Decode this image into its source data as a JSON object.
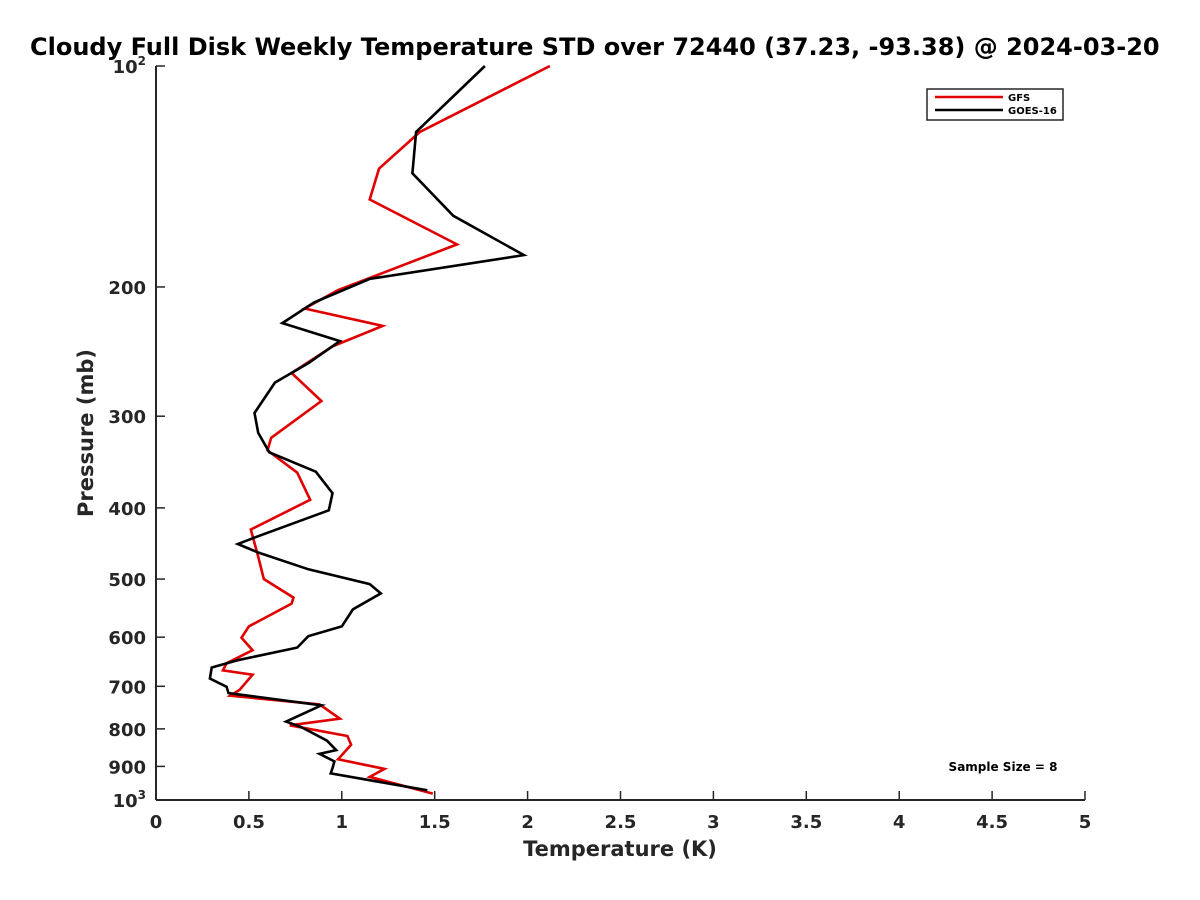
{
  "chart_data": {
    "type": "line",
    "title": "Cloudy Full Disk Weekly Temperature STD over 72440 (37.23, -93.38) @ 2024-03-20",
    "xlabel": "Temperature (K)",
    "ylabel": "Pressure (mb)",
    "xlim": [
      0,
      5
    ],
    "ylim": [
      1000,
      100
    ],
    "y_scale": "log",
    "y_reversed": true,
    "x_ticks": [
      "0",
      "0.5",
      "1",
      "1.5",
      "2",
      "2.5",
      "3",
      "3.5",
      "4",
      "4.5",
      "5"
    ],
    "y_ticks": [
      {
        "value": 100,
        "label": "10",
        "sup": "2"
      },
      {
        "value": 200,
        "label": "200",
        "sup": ""
      },
      {
        "value": 300,
        "label": "300",
        "sup": ""
      },
      {
        "value": 400,
        "label": "400",
        "sup": ""
      },
      {
        "value": 500,
        "label": "500",
        "sup": ""
      },
      {
        "value": 600,
        "label": "600",
        "sup": ""
      },
      {
        "value": 700,
        "label": "700",
        "sup": ""
      },
      {
        "value": 800,
        "label": "800",
        "sup": ""
      },
      {
        "value": 900,
        "label": "900",
        "sup": ""
      },
      {
        "value": 1000,
        "label": "10",
        "sup": "3"
      }
    ],
    "grid": false,
    "legend_position": "top-right",
    "annotation": "Sample Size = 8",
    "series": [
      {
        "name": "GFS",
        "color": "#e00000",
        "x": [
          2.12,
          1.42,
          1.2,
          1.15,
          1.62,
          0.98,
          0.8,
          1.22,
          0.95,
          0.73,
          0.89,
          0.62,
          0.6,
          0.76,
          0.83,
          0.51,
          0.55,
          0.58,
          0.74,
          0.73,
          0.5,
          0.46,
          0.52,
          0.38,
          0.36,
          0.52,
          0.45,
          0.4,
          0.88,
          0.99,
          0.72,
          1.03,
          1.05,
          0.98,
          1.23,
          1.15,
          1.49
        ],
        "y": [
          100,
          123,
          138,
          152,
          175,
          202,
          214,
          226,
          241,
          262,
          286,
          321,
          334,
          358,
          390,
          428,
          466,
          500,
          530,
          540,
          580,
          601,
          625,
          651,
          666,
          675,
          708,
          721,
          741,
          775,
          791,
          818,
          841,
          880,
          907,
          930,
          980
        ]
      },
      {
        "name": "GOES-16",
        "color": "#000000",
        "x": [
          1.77,
          1.4,
          1.38,
          1.6,
          1.98,
          1.15,
          0.85,
          0.68,
          0.99,
          0.82,
          0.64,
          0.53,
          0.55,
          0.61,
          0.86,
          0.95,
          0.93,
          0.52,
          0.44,
          0.55,
          0.82,
          1.15,
          1.21,
          1.06,
          1.0,
          0.82,
          0.76,
          0.44,
          0.3,
          0.29,
          0.38,
          0.39,
          0.89,
          0.7,
          0.78,
          0.92,
          0.97,
          0.88,
          0.96,
          0.95,
          0.94,
          1.46
        ],
        "y": [
          100,
          123,
          140,
          160,
          181,
          195,
          210,
          224,
          237,
          254,
          270,
          297,
          316,
          336,
          357,
          382,
          403,
          440,
          448,
          460,
          485,
          508,
          523,
          550,
          580,
          598,
          620,
          645,
          660,
          683,
          701,
          715,
          743,
          782,
          795,
          830,
          855,
          865,
          886,
          905,
          920,
          970
        ]
      }
    ]
  }
}
